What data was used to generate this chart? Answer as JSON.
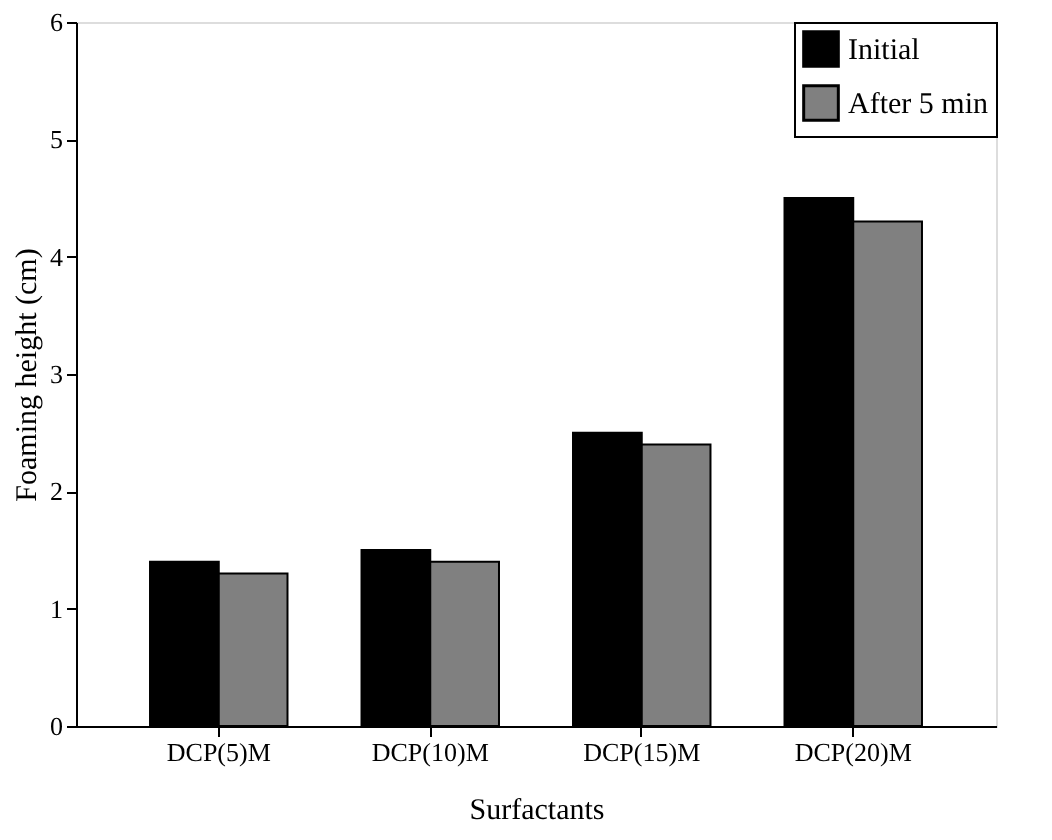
{
  "chart_data": {
    "type": "bar",
    "xlabel": "Surfactants",
    "ylabel": "Foaming height (cm)",
    "categories": [
      "DCP(5)M",
      "DCP(10)M",
      "DCP(15)M",
      "DCP(20)M"
    ],
    "series": [
      {
        "name": "Initial",
        "color": "#000000",
        "values": [
          1.4,
          1.5,
          2.5,
          4.5
        ]
      },
      {
        "name": "After 5 min",
        "color": "#808080",
        "values": [
          1.3,
          1.4,
          2.4,
          4.3
        ]
      }
    ],
    "ylim": [
      0,
      6
    ],
    "yticks": [
      0,
      1,
      2,
      3,
      4,
      5,
      6
    ],
    "grid": false,
    "legend": "top right"
  }
}
